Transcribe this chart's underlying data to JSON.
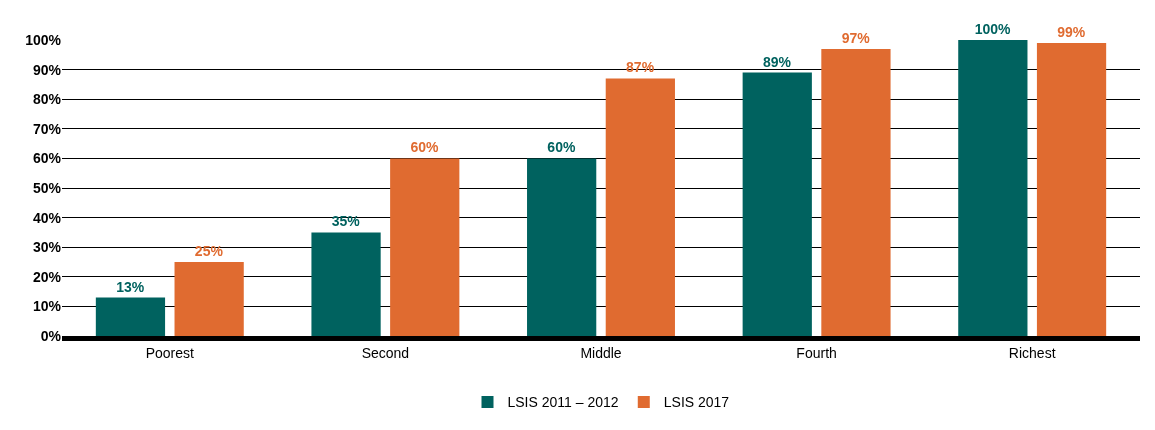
{
  "chart_data": {
    "type": "bar",
    "categories": [
      "Poorest",
      "Second",
      "Middle",
      "Fourth",
      "Richest"
    ],
    "series": [
      {
        "name": "LSIS 2011 – 2012",
        "color": "#00625f",
        "values": [
          13,
          35,
          60,
          89,
          100
        ],
        "value_labels": [
          "13%",
          "35%",
          "60%",
          "89%",
          "100%"
        ]
      },
      {
        "name": "LSIS 2017",
        "color": "#e06b30",
        "values": [
          25,
          60,
          87,
          97,
          99
        ],
        "value_labels": [
          "25%",
          "60%",
          "87%",
          "97%",
          "99%"
        ]
      }
    ],
    "ylim": [
      0,
      100
    ],
    "yticks": [
      {
        "value": 0,
        "label": "0%"
      },
      {
        "value": 10,
        "label": "10%"
      },
      {
        "value": 20,
        "label": "20%"
      },
      {
        "value": 30,
        "label": "30%"
      },
      {
        "value": 40,
        "label": "40%"
      },
      {
        "value": 50,
        "label": "50%"
      },
      {
        "value": 60,
        "label": "60%"
      },
      {
        "value": 70,
        "label": "70%"
      },
      {
        "value": 80,
        "label": "80%"
      },
      {
        "value": 90,
        "label": "90%"
      },
      {
        "value": 100,
        "label": "100%"
      }
    ],
    "grid": "y",
    "legend": "bottom"
  }
}
